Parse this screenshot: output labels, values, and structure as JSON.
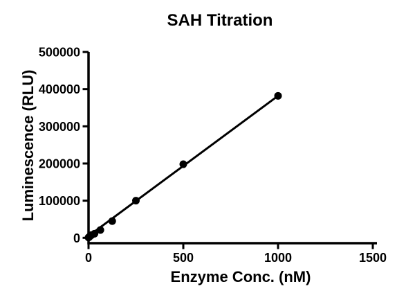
{
  "chart_data": {
    "type": "scatter",
    "title": "SAH Titration",
    "xlabel": "Enzyme Conc. (nM)",
    "ylabel": "Luminescence (RLU)",
    "xlim": [
      0,
      1500
    ],
    "ylim": [
      0,
      500000
    ],
    "x_ticks": [
      0,
      500,
      1000,
      1500
    ],
    "y_ticks": [
      0,
      100000,
      200000,
      300000,
      400000,
      500000
    ],
    "grid": false,
    "legend": "none",
    "background_color": "#ffffff",
    "axis_color": "#000000",
    "marker_color": "#000000",
    "line_color": "#000000",
    "series": [
      {
        "name": "SAH titration",
        "x": [
          0,
          3.9,
          7.8,
          15.6,
          31.3,
          62.5,
          125,
          250,
          500,
          1000
        ],
        "y": [
          1000,
          2500,
          4500,
          7500,
          11000,
          21000,
          45000,
          100000,
          198000,
          382000
        ]
      }
    ],
    "fit_line": {
      "x1": 0,
      "y1": 5000,
      "x2": 1000,
      "y2": 382000
    }
  }
}
